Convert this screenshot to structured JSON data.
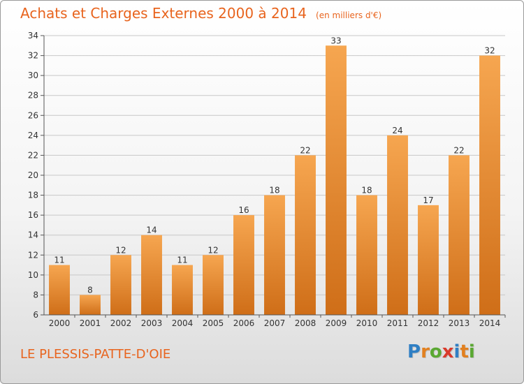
{
  "header": {
    "title": "Achats et Charges Externes 2000 à 2014",
    "unit": "(en milliers d'€)"
  },
  "footer": {
    "commune": "LE PLESSIS-PATTE-D'OIE"
  },
  "logo": {
    "text": "Proxiti",
    "letters": [
      {
        "char": "P",
        "color": "#2f7fc4"
      },
      {
        "char": "r",
        "color": "#e2801f"
      },
      {
        "char": "o",
        "color": "#5aa832"
      },
      {
        "char": "x",
        "color": "#d93a2b"
      },
      {
        "char": "i",
        "color": "#2f7fc4"
      },
      {
        "char": "t",
        "color": "#e2801f"
      },
      {
        "char": "i",
        "color": "#5aa832"
      }
    ]
  },
  "colors": {
    "accent": "#e8641e",
    "bar_top": "#f6a650",
    "bar_bottom": "#cf6e18",
    "grid": "#c8c8c8"
  },
  "chart_data": {
    "type": "bar",
    "title": "Achats et Charges Externes 2000 à 2014",
    "subtitle": "(en milliers d'€)",
    "xlabel": "",
    "ylabel": "",
    "categories": [
      "2000",
      "2001",
      "2002",
      "2003",
      "2004",
      "2005",
      "2006",
      "2007",
      "2008",
      "2009",
      "2010",
      "2011",
      "2012",
      "2013",
      "2014"
    ],
    "values": [
      11,
      8,
      12,
      14,
      11,
      12,
      16,
      18,
      22,
      33,
      18,
      24,
      17,
      22,
      32
    ],
    "ylim": [
      6,
      34
    ],
    "yticks": [
      6,
      8,
      10,
      12,
      14,
      16,
      18,
      20,
      22,
      24,
      26,
      28,
      30,
      32,
      34
    ],
    "grid": true,
    "legend": "none",
    "data_labels": true
  }
}
